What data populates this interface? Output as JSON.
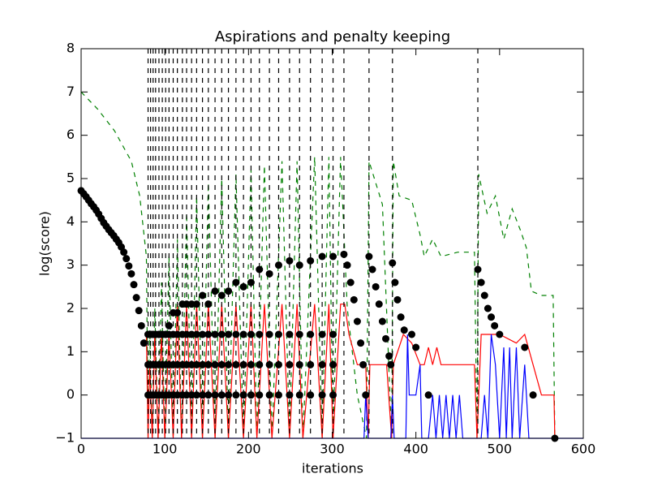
{
  "chart_data": {
    "type": "line",
    "title": "Aspirations and penalty keeping",
    "xlabel": "iterations",
    "ylabel": "log(score)",
    "xlim": [
      0,
      600
    ],
    "ylim": [
      -1,
      8
    ],
    "xticks": [
      0,
      100,
      200,
      300,
      400,
      500,
      600
    ],
    "yticks": [
      {
        "value": -1,
        "label": "−1"
      },
      0,
      1,
      2,
      3,
      4,
      5,
      6,
      7,
      8
    ],
    "vlines": {
      "color": "#000000",
      "style": "dashed",
      "x": [
        80,
        83,
        86,
        89,
        93,
        97,
        101,
        105,
        110,
        115,
        121,
        126,
        132,
        138,
        145,
        152,
        160,
        168,
        176,
        185,
        194,
        203,
        213,
        225,
        236,
        249,
        261,
        274,
        288,
        301,
        314,
        344,
        372,
        474
      ]
    },
    "series": [
      {
        "type": "line",
        "style": "dashed",
        "color": "#008000",
        "x": [
          0,
          20,
          40,
          60,
          70,
          78,
          80,
          82,
          85,
          88,
          92,
          96,
          100,
          105,
          110,
          115,
          120,
          126,
          132,
          138,
          145,
          152,
          160,
          168,
          176,
          185,
          194,
          203,
          210,
          219,
          228,
          240,
          249,
          258,
          265,
          279,
          288,
          296,
          301,
          310,
          318,
          330,
          341,
          344,
          360,
          371,
          373,
          380,
          395,
          405,
          410,
          420,
          430,
          450,
          470,
          473,
          475,
          485,
          495,
          505,
          515,
          525,
          532,
          538,
          550,
          564,
          566
        ],
        "values": [
          7,
          6.6,
          6.1,
          5.4,
          4.6,
          3.2,
          -1,
          1.5,
          -1,
          2,
          -1,
          2.6,
          -1,
          3.2,
          -1,
          3.6,
          -1,
          4.2,
          -1,
          4.6,
          -1,
          4.9,
          -1,
          5,
          -1,
          5.1,
          -1,
          5.2,
          -1,
          5.3,
          -1,
          5.4,
          -1,
          5.4,
          -1,
          5.5,
          -1,
          5.5,
          -1,
          5.5,
          2,
          0,
          -1,
          5.4,
          4.4,
          -1,
          5.4,
          4.6,
          4.5,
          3.7,
          3.2,
          3.6,
          3.2,
          3.3,
          3.3,
          -1,
          5.1,
          4.2,
          4.6,
          3.6,
          4.3,
          3.8,
          3.4,
          2.4,
          2.3,
          2.3,
          -1
        ]
      },
      {
        "type": "line",
        "style": "solid",
        "color": "#ff0000",
        "x": [
          78,
          80,
          82,
          85,
          88,
          92,
          96,
          100,
          105,
          110,
          115,
          120,
          126,
          132,
          138,
          145,
          152,
          160,
          168,
          176,
          185,
          194,
          203,
          210,
          219,
          228,
          240,
          249,
          258,
          265,
          279,
          288,
          296,
          301,
          310,
          315,
          320,
          330,
          340,
          343,
          345,
          365,
          371,
          373,
          385,
          395,
          405,
          410,
          415,
          420,
          425,
          430,
          445,
          470,
          473,
          478,
          500,
          520,
          530,
          540,
          550,
          565,
          566
        ],
        "values": [
          1.4,
          -1,
          0.7,
          -1,
          1.4,
          -1,
          1.4,
          -1,
          1.4,
          -1,
          2.1,
          -1,
          2.1,
          -1,
          2.1,
          -1,
          2.1,
          -1,
          2.1,
          -1,
          2.1,
          -1,
          2.1,
          -1,
          2.1,
          -1,
          2.1,
          -1,
          2.1,
          -1,
          2.1,
          -1,
          2.1,
          -1,
          2.1,
          2.1,
          1.4,
          0.7,
          0.7,
          -1,
          0.7,
          0.7,
          -1,
          0.7,
          1.4,
          1.2,
          0.7,
          0.7,
          1.1,
          0.7,
          1.1,
          0.7,
          0.7,
          0.7,
          -1,
          1.4,
          1.4,
          1.2,
          1.4,
          0.7,
          0,
          0,
          -1
        ]
      },
      {
        "type": "line",
        "style": "solid",
        "color": "#0000ff",
        "x": [
          0,
          338,
          340,
          343,
          370,
          372,
          374,
          388,
          390,
          392,
          400,
          405,
          407,
          415,
          420,
          424,
          428,
          432,
          436,
          440,
          444,
          448,
          452,
          456,
          473,
          478,
          482,
          486,
          490,
          495,
          500,
          505,
          508,
          512,
          515,
          520,
          524,
          530,
          535,
          600
        ],
        "values": [
          -1,
          -1,
          0,
          -1,
          -1,
          0,
          -1,
          -1,
          1.4,
          0,
          0,
          0.7,
          -1,
          -1,
          0,
          -1,
          0,
          -1,
          0,
          -1,
          0,
          -1,
          0,
          -1,
          -1,
          -1,
          0,
          -1,
          1.4,
          0.7,
          -1,
          1.1,
          -1,
          1.1,
          -1,
          1.1,
          -1,
          0.7,
          -1,
          -1
        ]
      },
      {
        "type": "scatter",
        "color": "#000000",
        "x": [
          0,
          3,
          6,
          9,
          12,
          15,
          18,
          21,
          24,
          27,
          30,
          33,
          36,
          39,
          42,
          45,
          48,
          51,
          54,
          57,
          60,
          63,
          66,
          69,
          72,
          75,
          80,
          80,
          80,
          80,
          83,
          83,
          83,
          83,
          86,
          86,
          86,
          86,
          89,
          89,
          89,
          89,
          93,
          93,
          93,
          93,
          97,
          97,
          97,
          97,
          101,
          101,
          101,
          101,
          105,
          105,
          105,
          105,
          110,
          110,
          110,
          110,
          115,
          115,
          115,
          115,
          121,
          121,
          121,
          121,
          126,
          126,
          126,
          126,
          132,
          132,
          132,
          132,
          138,
          138,
          138,
          138,
          145,
          145,
          145,
          145,
          152,
          152,
          152,
          152,
          160,
          160,
          160,
          160,
          168,
          168,
          168,
          168,
          176,
          176,
          176,
          176,
          185,
          185,
          185,
          185,
          194,
          194,
          194,
          194,
          203,
          203,
          203,
          203,
          213,
          213,
          213,
          213,
          225,
          225,
          225,
          225,
          236,
          236,
          236,
          236,
          249,
          249,
          249,
          249,
          261,
          261,
          261,
          261,
          274,
          274,
          274,
          274,
          288,
          288,
          288,
          288,
          301,
          301,
          301,
          301,
          314,
          318,
          322,
          326,
          330,
          334,
          337,
          340,
          344,
          348,
          352,
          356,
          360,
          364,
          368,
          370,
          372,
          375,
          378,
          382,
          386,
          395,
          400,
          415,
          474,
          478,
          482,
          486,
          490,
          494,
          500,
          530,
          540,
          566
        ],
        "values": [
          4.72,
          4.65,
          4.58,
          4.5,
          4.42,
          4.35,
          4.27,
          4.18,
          4.08,
          3.98,
          3.9,
          3.82,
          3.75,
          3.68,
          3.6,
          3.52,
          3.42,
          3.3,
          3.15,
          2.98,
          2.8,
          2.55,
          2.25,
          1.95,
          1.6,
          1.2,
          0,
          0.7,
          1.4,
          1.4,
          0,
          0.7,
          1.4,
          1.4,
          0,
          0.7,
          1.4,
          1.4,
          0,
          0.7,
          1.4,
          1.4,
          0,
          0.7,
          1.4,
          1.4,
          0,
          0.7,
          1.4,
          1.4,
          0,
          0.7,
          1.4,
          1.4,
          0,
          0.7,
          1.4,
          1.6,
          0,
          0.7,
          1.4,
          1.9,
          0,
          0.7,
          1.4,
          1.9,
          0,
          0.7,
          1.4,
          2.1,
          0,
          0.7,
          1.4,
          2.1,
          0,
          0.7,
          1.4,
          2.1,
          0,
          0.7,
          1.4,
          2.1,
          0,
          0.7,
          1.4,
          2.3,
          0,
          0.7,
          1.4,
          2.1,
          0,
          0.7,
          1.4,
          2.4,
          0,
          0.7,
          1.4,
          2.3,
          0,
          0.7,
          1.4,
          2.4,
          0,
          0.7,
          1.4,
          2.6,
          0,
          0.7,
          1.4,
          2.5,
          0,
          0.7,
          1.4,
          2.6,
          0,
          0.7,
          1.4,
          2.9,
          0,
          0.7,
          1.4,
          2.8,
          0,
          0.7,
          1.4,
          3.0,
          0,
          0.7,
          1.4,
          3.1,
          0,
          0.7,
          1.4,
          3.0,
          0,
          0.7,
          1.4,
          3.1,
          0,
          0.7,
          1.4,
          3.2,
          0,
          0.7,
          1.4,
          3.2,
          3.25,
          3.0,
          2.6,
          2.2,
          1.7,
          1.2,
          0.7,
          0,
          3.2,
          2.9,
          2.5,
          2.1,
          1.7,
          1.3,
          0.9,
          0.7,
          3.05,
          2.6,
          2.2,
          1.8,
          1.5,
          1.4,
          1.1,
          0,
          2.9,
          2.6,
          2.3,
          2.0,
          1.8,
          1.6,
          1.4,
          1.1,
          0,
          -1
        ]
      }
    ]
  }
}
